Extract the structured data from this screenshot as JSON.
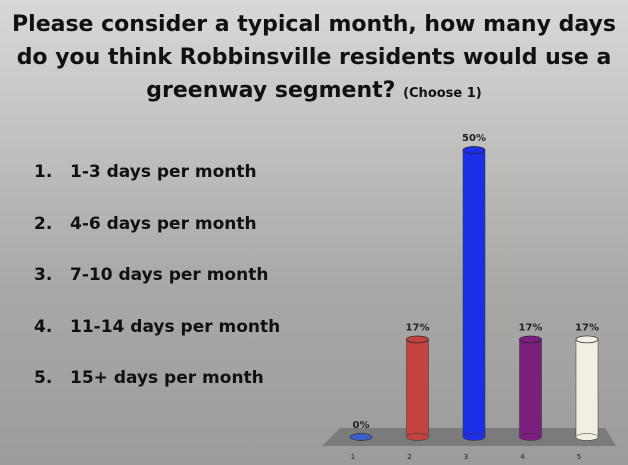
{
  "title": "Please consider a typical month, how many days do you think Robbinsville residents would use a greenway segment?",
  "title_note": "(Choose 1)",
  "options": [
    {
      "number": "1.",
      "text": "1-3 days per month"
    },
    {
      "number": "2.",
      "text": "4-6 days per month"
    },
    {
      "number": "3.",
      "text": "7-10 days per month"
    },
    {
      "number": "4.",
      "text": "11-14 days per month"
    },
    {
      "number": "5.",
      "text": "15+ days per month"
    }
  ],
  "chart_data": {
    "type": "bar",
    "categories": [
      "1",
      "2",
      "3",
      "4",
      "5"
    ],
    "values": [
      0,
      17,
      50,
      17,
      17
    ],
    "value_labels": [
      "0%",
      "17%",
      "50%",
      "17%",
      "17%"
    ],
    "colors": [
      "#3b5fc8",
      "#c3443f",
      "#1c2fe6",
      "#7a1f7e",
      "#f2eee4"
    ]
  }
}
